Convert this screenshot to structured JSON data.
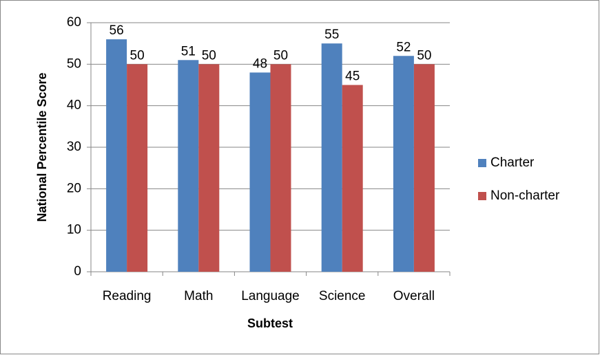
{
  "chart_data": {
    "type": "bar",
    "categories": [
      "Reading",
      "Math",
      "Language",
      "Science",
      "Overall"
    ],
    "series": [
      {
        "name": "Charter",
        "color": "#4f81bd",
        "values": [
          56,
          51,
          48,
          55,
          52
        ]
      },
      {
        "name": "Non-charter",
        "color": "#c0504d",
        "values": [
          50,
          50,
          50,
          45,
          50
        ]
      }
    ],
    "x_label": "Subtest",
    "y_label": "National Percentile Score",
    "ylim": [
      0,
      60
    ],
    "yticks": [
      0,
      10,
      20,
      30,
      40,
      50,
      60
    ],
    "grid": true,
    "legend": "right"
  }
}
